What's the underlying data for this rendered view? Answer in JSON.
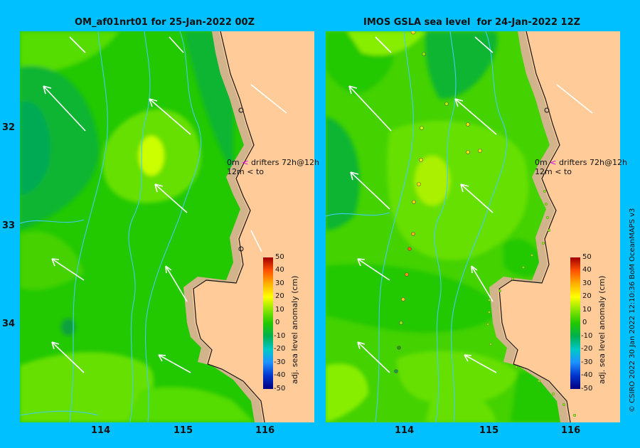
{
  "left_panel": {
    "title": "OM_af01nrt01 for 25-Jan-2022 00Z",
    "drifter_legend": {
      "line1_depth": "0m",
      "line1_text": "drifters 72h@12h",
      "line2_depth": "12m",
      "line2_text": "to"
    }
  },
  "right_panel": {
    "title": "IMOS GSLA sea level  for 24-Jan-2022 12Z",
    "drifter_legend": {
      "line1_depth": "0m",
      "line1_text": "drifters 72h@12h",
      "line2_depth": "12m",
      "line2_text": "to"
    }
  },
  "axes": {
    "y_ticks": [
      "32",
      "33",
      "34"
    ],
    "x_ticks": [
      "114",
      "115",
      "116"
    ]
  },
  "colorbar": {
    "label": "adj. sea level anomaly (cm)",
    "ticks": [
      "50",
      "40",
      "30",
      "20",
      "10",
      "0",
      "-10",
      "-20",
      "-30",
      "-40",
      "-50"
    ],
    "colors": {
      "land": "#ffcc99",
      "ocean_green": "#22c800",
      "ocean_lime": "#66e000",
      "ocean_yellow": "#ccff00",
      "ocean_teal": "#00b050",
      "background": "#00c0ff"
    }
  },
  "credit": "© CSIRO 2022   30 Jan 2022 12:10:36 BoM OceanMAPS v3"
}
